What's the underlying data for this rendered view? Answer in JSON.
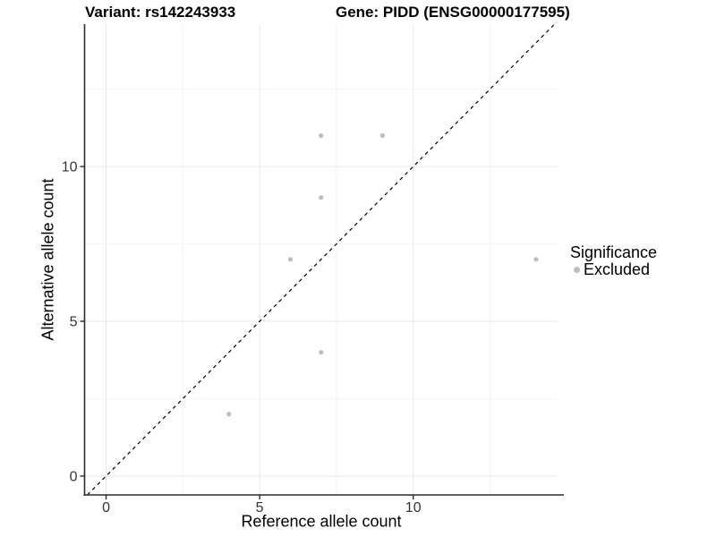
{
  "header": {
    "variant_title": "Variant: rs142243933",
    "gene_title": "Gene: PIDD (ENSG00000177595)"
  },
  "chart_data": {
    "type": "scatter",
    "xlabel": "Reference allele count",
    "ylabel": "Alternative allele count",
    "xlim": [
      -0.7,
      14.7
    ],
    "ylim": [
      -0.61,
      14.6
    ],
    "x_major_ticks": [
      0,
      5,
      10
    ],
    "y_major_ticks": [
      0,
      5,
      10
    ],
    "x_minor_gridlines": [
      2.5,
      7.5,
      12.5
    ],
    "y_minor_gridlines": [
      2.5,
      7.5,
      12.5
    ],
    "grid": true,
    "legend_position": "right",
    "series": [
      {
        "name": "Excluded",
        "color": "#bebebe",
        "points": [
          [
            4,
            2
          ],
          [
            6,
            7
          ],
          [
            7,
            4
          ],
          [
            7,
            9
          ],
          [
            7,
            11
          ],
          [
            9,
            11
          ],
          [
            14,
            7
          ]
        ]
      }
    ],
    "reference_line": {
      "type": "identity",
      "style": "dashed",
      "color": "#000000"
    }
  },
  "legend": {
    "title": "Significance",
    "entries": [
      {
        "label": "Excluded",
        "color": "#bebebe"
      }
    ]
  },
  "colors": {
    "background": "#ffffff",
    "grid_major": "#e8e8e8",
    "grid_minor": "#f4f4f4",
    "axis_line": "#2b2b2b",
    "tick_text": "#333333",
    "point": "#bebebe",
    "identity_line": "#000000"
  }
}
